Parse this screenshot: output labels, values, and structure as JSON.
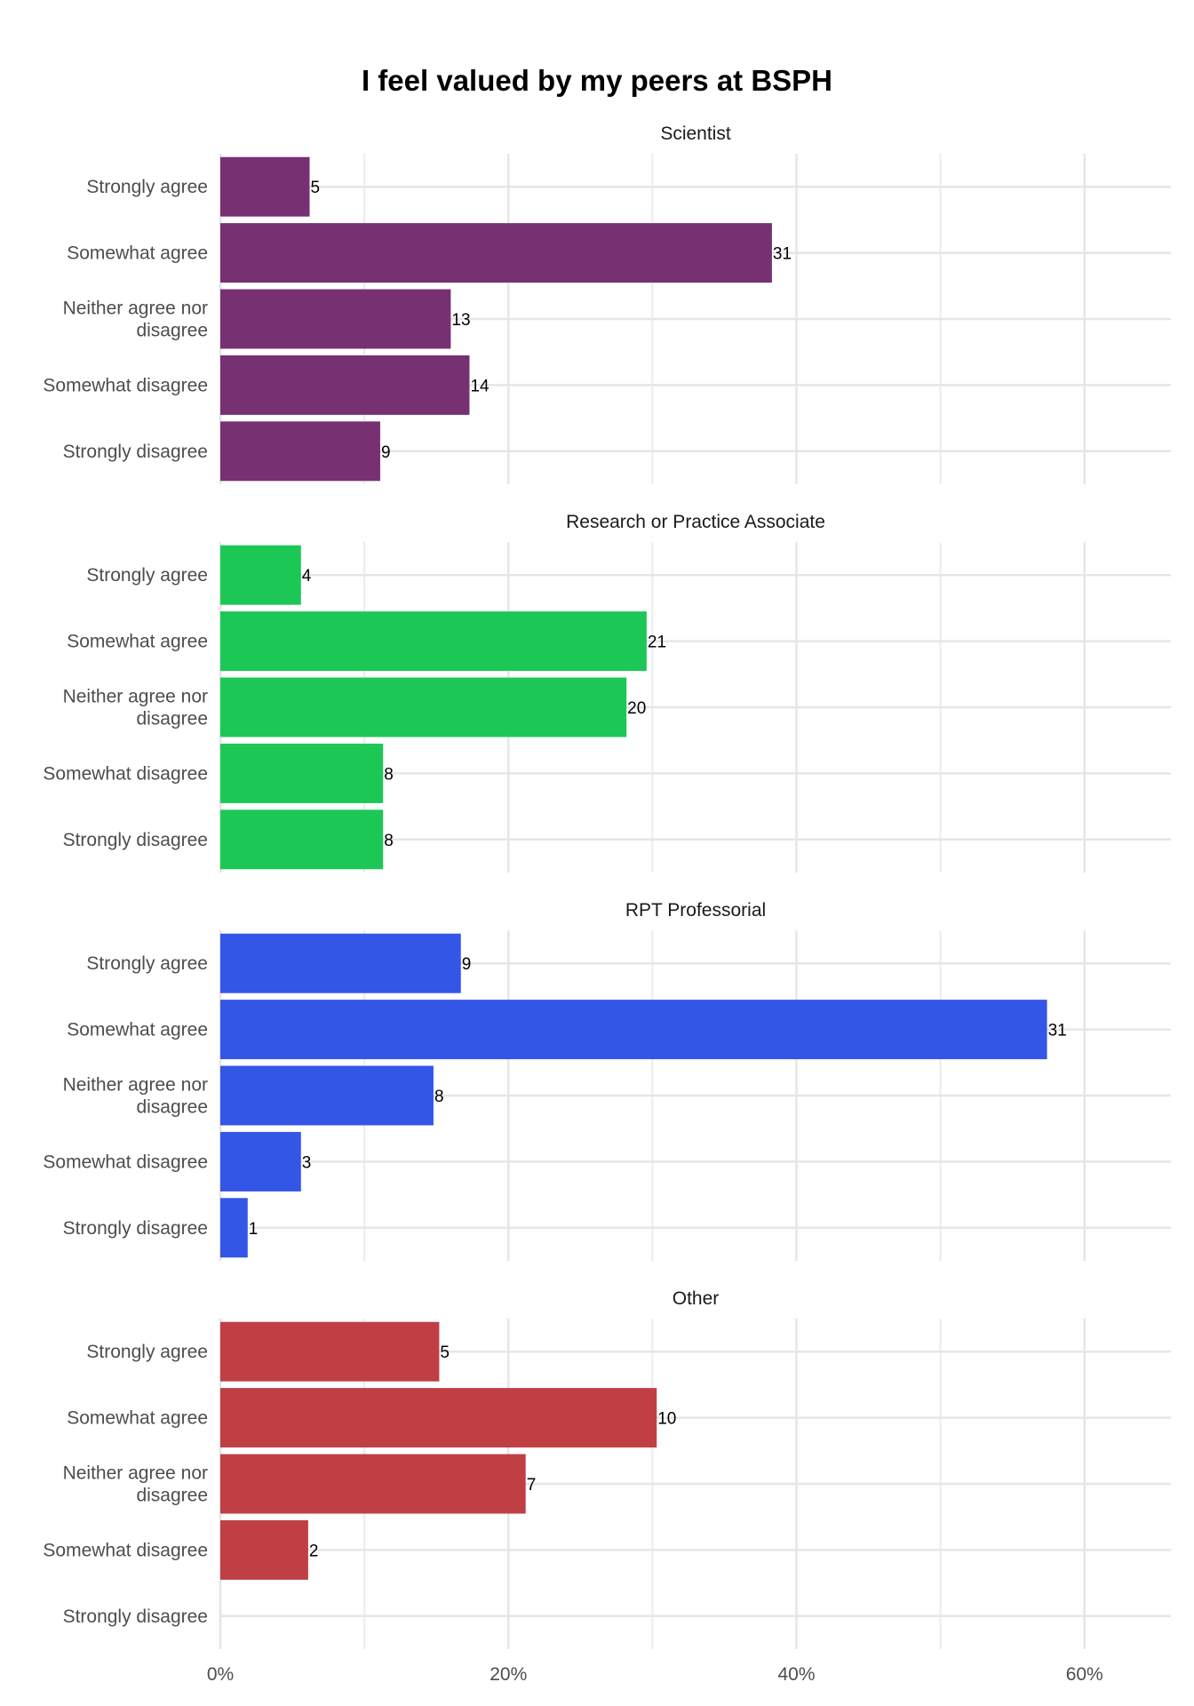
{
  "chart_data": {
    "type": "bar",
    "orientation": "horizontal",
    "title": "I feel valued by my peers at BSPH",
    "xlabel": "",
    "ylabel": "",
    "xlim": [
      0,
      66
    ],
    "x_ticks": [
      {
        "value": 0,
        "label": "0%"
      },
      {
        "value": 20,
        "label": "20%"
      },
      {
        "value": 40,
        "label": "40%"
      },
      {
        "value": 60,
        "label": "60%"
      }
    ],
    "grid": true,
    "legend": "none",
    "categories": [
      "Strongly agree",
      "Somewhat agree",
      "Neither agree nor disagree",
      "Somewhat disagree",
      "Strongly disagree"
    ],
    "category_lines": [
      [
        "Strongly agree"
      ],
      [
        "Somewhat agree"
      ],
      [
        "Neither agree nor",
        "disagree"
      ],
      [
        "Somewhat disagree"
      ],
      [
        "Strongly disagree"
      ]
    ],
    "panels": [
      {
        "name": "Scientist",
        "color": "#773173",
        "counts": [
          5,
          31,
          13,
          14,
          9
        ],
        "percent": [
          6.2,
          38.3,
          16.0,
          17.3,
          11.1
        ]
      },
      {
        "name": "Research or Practice Associate",
        "color": "#1dc756",
        "counts": [
          4,
          21,
          20,
          8,
          8
        ],
        "percent": [
          5.6,
          29.6,
          28.2,
          11.3,
          11.3
        ]
      },
      {
        "name": "RPT Professorial",
        "color": "#3356e7",
        "counts": [
          9,
          31,
          8,
          3,
          1
        ],
        "percent": [
          16.7,
          57.4,
          14.8,
          5.6,
          1.9
        ]
      },
      {
        "name": "Other",
        "color": "#bf3f44",
        "counts": [
          5,
          10,
          7,
          2,
          null
        ],
        "percent": [
          15.2,
          30.3,
          21.2,
          6.1,
          0
        ]
      }
    ]
  }
}
